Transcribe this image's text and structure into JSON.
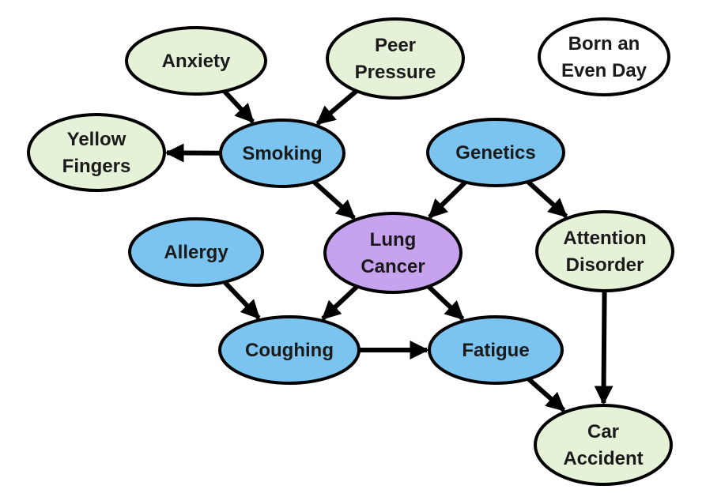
{
  "colors": {
    "blue": "#7cc4f0",
    "green": "#e6f2d8",
    "purple": "#c7a2ee",
    "white": "#ffffff",
    "outline": "#000000"
  },
  "nodes": {
    "anxiety": {
      "lines": [
        "Anxiety"
      ],
      "fill": "green"
    },
    "peer_pressure": {
      "lines": [
        "Peer",
        "Pressure"
      ],
      "fill": "green"
    },
    "born_even_day": {
      "lines": [
        "Born an",
        "Even Day"
      ],
      "fill": "white"
    },
    "yellow_fingers": {
      "lines": [
        "Yellow",
        "Fingers"
      ],
      "fill": "green"
    },
    "smoking": {
      "lines": [
        "Smoking"
      ],
      "fill": "blue"
    },
    "genetics": {
      "lines": [
        "Genetics"
      ],
      "fill": "blue"
    },
    "allergy": {
      "lines": [
        "Allergy"
      ],
      "fill": "blue"
    },
    "lung_cancer": {
      "lines": [
        "Lung",
        "Cancer"
      ],
      "fill": "purple"
    },
    "attention_disorder": {
      "lines": [
        "Attention",
        "Disorder"
      ],
      "fill": "green"
    },
    "coughing": {
      "lines": [
        "Coughing"
      ],
      "fill": "blue"
    },
    "fatigue": {
      "lines": [
        "Fatigue"
      ],
      "fill": "blue"
    },
    "car_accident": {
      "lines": [
        "Car",
        "Accident"
      ],
      "fill": "green"
    }
  },
  "edges": [
    {
      "from": "anxiety",
      "to": "smoking"
    },
    {
      "from": "peer_pressure",
      "to": "smoking"
    },
    {
      "from": "smoking",
      "to": "yellow_fingers"
    },
    {
      "from": "smoking",
      "to": "lung_cancer"
    },
    {
      "from": "genetics",
      "to": "lung_cancer"
    },
    {
      "from": "genetics",
      "to": "attention_disorder"
    },
    {
      "from": "allergy",
      "to": "coughing"
    },
    {
      "from": "lung_cancer",
      "to": "coughing"
    },
    {
      "from": "lung_cancer",
      "to": "fatigue"
    },
    {
      "from": "coughing",
      "to": "fatigue"
    },
    {
      "from": "fatigue",
      "to": "car_accident"
    },
    {
      "from": "attention_disorder",
      "to": "car_accident"
    }
  ]
}
